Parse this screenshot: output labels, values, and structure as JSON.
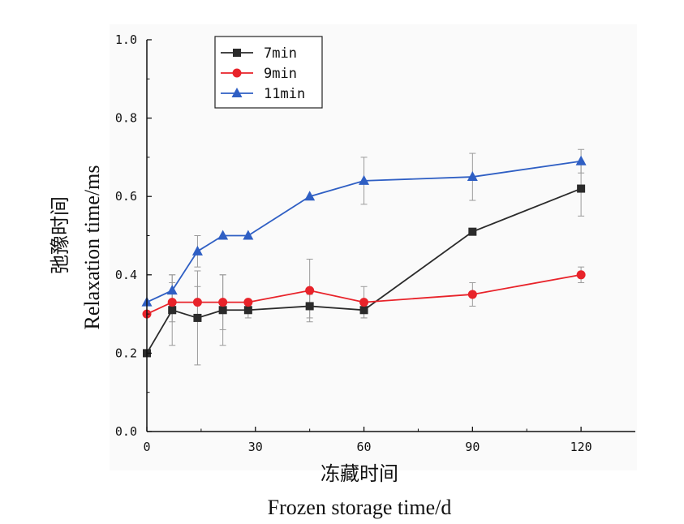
{
  "chart_data": {
    "type": "line",
    "xlabel_cn": "冻藏时间",
    "xlabel_en": "Frozen storage time/d",
    "ylabel_cn": "弛豫时间",
    "ylabel_en": "Relaxation time/ms",
    "xlim": [
      0,
      135
    ],
    "ylim": [
      0,
      1.0
    ],
    "xticks": [
      0,
      30,
      60,
      90,
      120
    ],
    "xtick_labels": [
      "0",
      "30",
      "60",
      "90",
      "120"
    ],
    "yticks": [
      0.0,
      0.2,
      0.4,
      0.6,
      0.8,
      1.0
    ],
    "ytick_labels": [
      "0.0",
      "0.2",
      "0.4",
      "0.6",
      "0.8",
      "1.0"
    ],
    "legend_position": "top-left",
    "grid": false,
    "x": [
      0,
      7,
      14,
      21,
      28,
      45,
      60,
      90,
      120
    ],
    "series": [
      {
        "name": "7min",
        "color": "#2b2b2b",
        "marker": "square",
        "values": [
          0.2,
          0.31,
          0.29,
          0.31,
          0.31,
          0.32,
          0.31,
          0.51,
          0.62
        ],
        "errors": [
          0.0,
          0.09,
          0.12,
          0.09,
          0.02,
          0.03,
          0.02,
          0.0,
          0.07
        ]
      },
      {
        "name": "9min",
        "color": "#e8232a",
        "marker": "circle",
        "values": [
          0.3,
          0.33,
          0.33,
          0.33,
          0.33,
          0.36,
          0.33,
          0.35,
          0.4
        ],
        "errors": [
          0.0,
          0.05,
          0.04,
          0.07,
          0.0,
          0.08,
          0.04,
          0.03,
          0.02
        ]
      },
      {
        "name": "11min",
        "color": "#2f5fc4",
        "marker": "triangle",
        "values": [
          0.33,
          0.36,
          0.46,
          0.5,
          0.5,
          0.6,
          0.64,
          0.65,
          0.69
        ],
        "errors": [
          0.0,
          0.04,
          0.04,
          0.0,
          0.0,
          0.0,
          0.06,
          0.06,
          0.03
        ]
      }
    ]
  }
}
